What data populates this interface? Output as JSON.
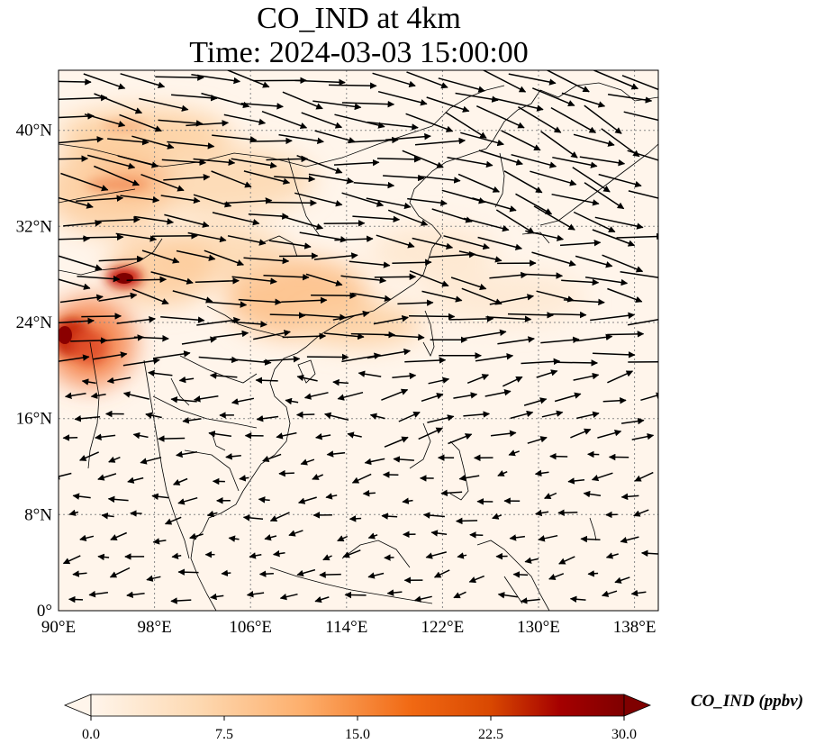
{
  "title": {
    "line1": "CO_IND at 4km",
    "line2": "Time: 2024-03-03 15:00:00"
  },
  "map": {
    "x_ticks": [
      "90°E",
      "98°E",
      "106°E",
      "114°E",
      "122°E",
      "130°E",
      "138°E"
    ],
    "y_ticks": [
      "0°",
      "8°N",
      "16°N",
      "24°N",
      "32°N",
      "40°N"
    ],
    "lon_range": [
      90,
      140
    ],
    "lat_range": [
      0,
      45
    ],
    "gridlines": true,
    "colors": {
      "land_border": "#000000",
      "arrow": "#000000",
      "grid": "#888888"
    }
  },
  "colorbar": {
    "label": "CO_IND (ppbv)",
    "ticks": [
      "0.0",
      "7.5",
      "15.0",
      "22.5",
      "30.0"
    ],
    "range": [
      0,
      30
    ],
    "colormap": [
      "#fff5eb",
      "#fdd9b2",
      "#fdae6b",
      "#f16913",
      "#d94801",
      "#a50000",
      "#7f0000"
    ]
  },
  "chart_data": {
    "type": "heatmap",
    "title": "CO_IND at 4km",
    "subtitle": "Time: 2024-03-03 15:00:00",
    "variable": "CO_IND",
    "units": "ppbv",
    "xlim": [
      90,
      140
    ],
    "ylim": [
      0,
      45
    ],
    "vrange": [
      0,
      30
    ],
    "hotspots": [
      {
        "lon": 95.5,
        "lat": 28,
        "value": 30
      },
      {
        "lon": 91,
        "lat": 23,
        "value": 28
      },
      {
        "lon": 93,
        "lat": 22,
        "value": 22
      },
      {
        "lon": 96,
        "lat": 36,
        "value": 12
      },
      {
        "lon": 99,
        "lat": 38,
        "value": 10
      },
      {
        "lon": 108,
        "lat": 27,
        "value": 9
      },
      {
        "lon": 112,
        "lat": 25,
        "value": 7
      },
      {
        "lon": 104,
        "lat": 30,
        "value": 6
      },
      {
        "lon": 118,
        "lat": 33,
        "value": 5
      }
    ]
  }
}
